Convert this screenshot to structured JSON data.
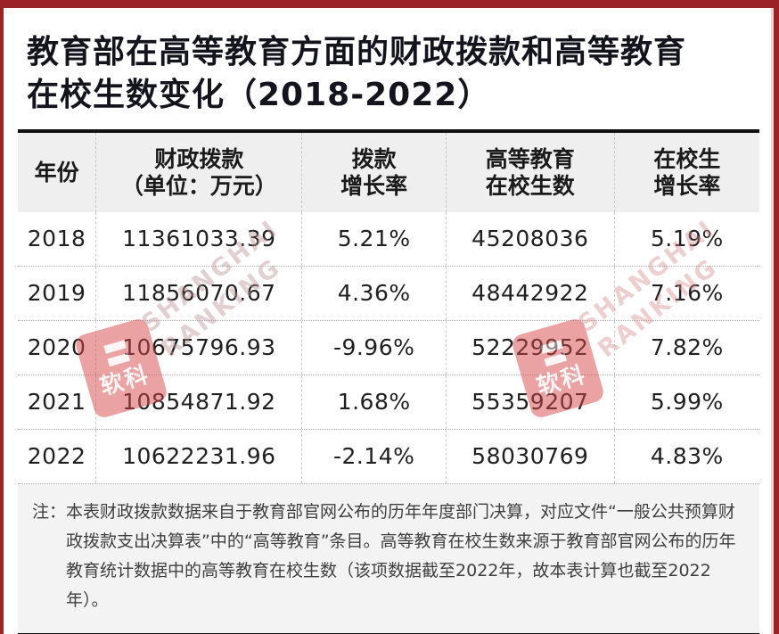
{
  "title": {
    "line1": "教育部在高等教育方面的财政拨款和高等教育",
    "line2": "在校生数变化（2018-2022）"
  },
  "table": {
    "headers": [
      {
        "line1": "年份",
        "line2": ""
      },
      {
        "line1": "财政拨款",
        "line2": "（单位：万元）"
      },
      {
        "line1": "拨款",
        "line2": "增长率"
      },
      {
        "line1": "高等教育",
        "line2": "在校生数"
      },
      {
        "line1": "在校生",
        "line2": "增长率"
      }
    ],
    "rows": [
      [
        "2018",
        "11361033.39",
        "5.21%",
        "45208036",
        "5.19%"
      ],
      [
        "2019",
        "11856070.67",
        "4.36%",
        "48442922",
        "7.16%"
      ],
      [
        "2020",
        "10675796.93",
        "-9.96%",
        "52229952",
        "7.82%"
      ],
      [
        "2021",
        "10854871.92",
        "1.68%",
        "55359207",
        "5.99%"
      ],
      [
        "2022",
        "10622231.96",
        "-2.14%",
        "58030769",
        "4.83%"
      ]
    ]
  },
  "note": {
    "label": "注：",
    "text": "本表财政拨款数据来自于教育部官网公布的历年年度部门决算，对应文件“一般公共预算财政拨款支出决算表”中的“高等教育”条目。高等教育在校生数来源于教育部官网公布的历年教育统计数据中的高等教育在校生数（该项数据截至2022年，故本表计算也截至2022年）。"
  },
  "watermark": {
    "brand_cn": "软科",
    "brand_glyph": "〓",
    "en_line1": "SHANGHAI",
    "en_line2": "RANKING"
  },
  "colors": {
    "frame_red": "#9b2328",
    "table_border": "#121212",
    "header_bg": "#efefef",
    "note_bg": "#f3f3f3",
    "watermark_red": "#d6484a",
    "title_color": "#14141f"
  },
  "chart_data": {
    "type": "table",
    "title": "教育部在高等教育方面的财政拨款和高等教育在校生数变化（2018-2022）",
    "columns": [
      "年份",
      "财政拨款（单位：万元）",
      "拨款增长率",
      "高等教育在校生数",
      "在校生增长率"
    ],
    "rows": [
      {
        "year": 2018,
        "funding_wan_yuan": 11361033.39,
        "funding_growth": "5.21%",
        "students": 45208036,
        "student_growth": "5.19%"
      },
      {
        "year": 2019,
        "funding_wan_yuan": 11856070.67,
        "funding_growth": "4.36%",
        "students": 48442922,
        "student_growth": "7.16%"
      },
      {
        "year": 2020,
        "funding_wan_yuan": 10675796.93,
        "funding_growth": "-9.96%",
        "students": 52229952,
        "student_growth": "7.82%"
      },
      {
        "year": 2021,
        "funding_wan_yuan": 10854871.92,
        "funding_growth": "1.68%",
        "students": 55359207,
        "student_growth": "5.99%"
      },
      {
        "year": 2022,
        "funding_wan_yuan": 10622231.96,
        "funding_growth": "-2.14%",
        "students": 58030769,
        "student_growth": "4.83%"
      }
    ]
  }
}
